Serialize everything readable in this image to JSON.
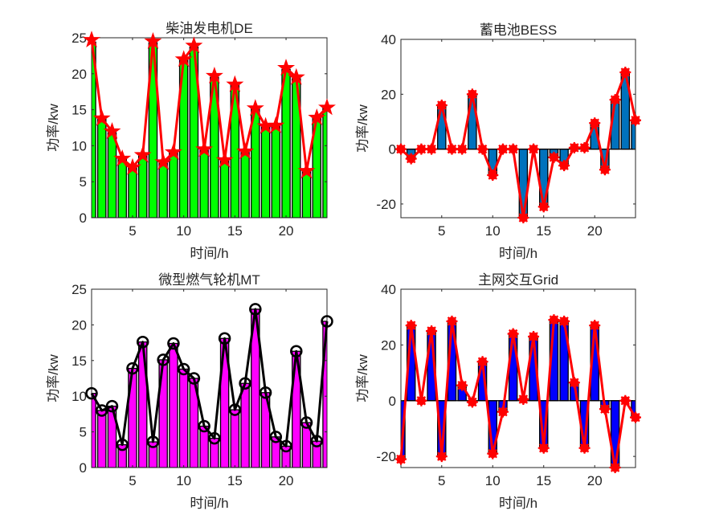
{
  "chart_data": [
    {
      "type": "bar",
      "title": "柴油发电机DE",
      "xlabel": "时间/h",
      "ylabel": "功率/kw",
      "xlim": [
        1,
        24
      ],
      "ylim": [
        0,
        25
      ],
      "xticks": [
        5,
        10,
        15,
        20
      ],
      "yticks": [
        0,
        5,
        10,
        15,
        20,
        25
      ],
      "categories": [
        1,
        2,
        3,
        4,
        5,
        6,
        7,
        8,
        9,
        10,
        11,
        12,
        13,
        14,
        15,
        16,
        17,
        18,
        19,
        20,
        21,
        22,
        23,
        24
      ],
      "bar_color": "#00ff00",
      "line_color": "#ff0000",
      "marker": "pentagram",
      "series": [
        {
          "name": "bar",
          "values": [
            24.4,
            13.7,
            11.8,
            8.1,
            6.9,
            8.6,
            24.3,
            7.6,
            9.0,
            21.9,
            23.7,
            9.4,
            19.5,
            7.9,
            18.4,
            9.1,
            15.1,
            12.6,
            12.7,
            20.6,
            19.3,
            6.4,
            13.8,
            15.2
          ]
        },
        {
          "name": "line",
          "values": [
            24.7,
            13.8,
            12.0,
            8.2,
            7.0,
            8.7,
            24.5,
            7.7,
            9.1,
            22.0,
            23.9,
            9.5,
            19.7,
            8.0,
            18.5,
            9.2,
            15.2,
            12.7,
            12.8,
            20.8,
            19.5,
            6.5,
            13.9,
            15.3
          ]
        }
      ]
    },
    {
      "type": "bar",
      "title": "蓄电池BESS",
      "xlabel": "时间/h",
      "ylabel": "功率/kw",
      "xlim": [
        1,
        24
      ],
      "ylim": [
        -25,
        40
      ],
      "xticks": [
        5,
        10,
        15,
        20
      ],
      "yticks": [
        -20,
        0,
        20,
        40
      ],
      "categories": [
        1,
        2,
        3,
        4,
        5,
        6,
        7,
        8,
        9,
        10,
        11,
        12,
        13,
        14,
        15,
        16,
        17,
        18,
        19,
        20,
        21,
        22,
        23,
        24
      ],
      "bar_color": "#0072bd",
      "line_color": "#ff0000",
      "marker": "asterisk",
      "series": [
        {
          "name": "bar",
          "values": [
            0,
            -3.5,
            0,
            0,
            16,
            0,
            0,
            20,
            0,
            -9.5,
            0,
            0,
            -25,
            0,
            -21,
            -3,
            -6,
            0.5,
            0.5,
            9.5,
            -7.5,
            18,
            28,
            10.5
          ]
        },
        {
          "name": "line",
          "values": [
            0,
            -3.5,
            0,
            0,
            16,
            0,
            0,
            20,
            0,
            -9.5,
            0,
            0,
            -25,
            0,
            -21,
            -3,
            -6,
            0.5,
            0.5,
            9.5,
            -7.5,
            18,
            28,
            10.5
          ]
        }
      ]
    },
    {
      "type": "bar",
      "title": "微型燃气轮机MT",
      "xlabel": "时间/h",
      "ylabel": "功率/kw",
      "xlim": [
        1,
        24
      ],
      "ylim": [
        0,
        25
      ],
      "xticks": [
        5,
        10,
        15,
        20
      ],
      "yticks": [
        0,
        5,
        10,
        15,
        20,
        25
      ],
      "categories": [
        1,
        2,
        3,
        4,
        5,
        6,
        7,
        8,
        9,
        10,
        11,
        12,
        13,
        14,
        15,
        16,
        17,
        18,
        19,
        20,
        21,
        22,
        23,
        24
      ],
      "bar_color": "#ff00ff",
      "line_color": "#000000",
      "marker": "circle",
      "series": [
        {
          "name": "bar",
          "values": [
            10.4,
            8.0,
            8.6,
            3.2,
            13.9,
            17.6,
            3.6,
            15.1,
            17.4,
            13.8,
            12.5,
            5.8,
            4.1,
            18.1,
            8.1,
            11.8,
            22.2,
            10.5,
            4.3,
            3.0,
            16.3,
            6.3,
            3.7,
            20.5
          ]
        },
        {
          "name": "line",
          "values": [
            10.4,
            8.0,
            8.6,
            3.2,
            13.9,
            17.6,
            3.6,
            15.1,
            17.4,
            13.8,
            12.5,
            5.8,
            4.1,
            18.1,
            8.1,
            11.8,
            22.2,
            10.5,
            4.3,
            3.0,
            16.3,
            6.3,
            3.7,
            20.5
          ]
        }
      ]
    },
    {
      "type": "bar",
      "title": "主网交互Grid",
      "xlabel": "时间/h",
      "ylabel": "功率/kw",
      "xlim": [
        1,
        24
      ],
      "ylim": [
        -24,
        40
      ],
      "xticks": [
        5,
        10,
        15,
        20
      ],
      "yticks": [
        -20,
        0,
        20,
        40
      ],
      "categories": [
        1,
        2,
        3,
        4,
        5,
        6,
        7,
        8,
        9,
        10,
        11,
        12,
        13,
        14,
        15,
        16,
        17,
        18,
        19,
        20,
        21,
        22,
        23,
        24
      ],
      "bar_color": "#0000ff",
      "line_color": "#ff0000",
      "marker": "asterisk",
      "series": [
        {
          "name": "bar",
          "values": [
            -21,
            27,
            0,
            25,
            -20,
            28.5,
            5.5,
            -0.5,
            14,
            -19,
            -4,
            24,
            0.5,
            23,
            -17,
            29,
            28.5,
            6.5,
            -17,
            27,
            -3,
            -24,
            0,
            -6
          ]
        },
        {
          "name": "line",
          "values": [
            -21,
            27,
            0,
            25,
            -20,
            28.5,
            5.5,
            -0.5,
            14,
            -19,
            -4,
            24,
            0.5,
            23,
            -17,
            29,
            28.5,
            6.5,
            -17,
            27,
            -3,
            -24,
            0,
            -6
          ]
        }
      ]
    }
  ]
}
